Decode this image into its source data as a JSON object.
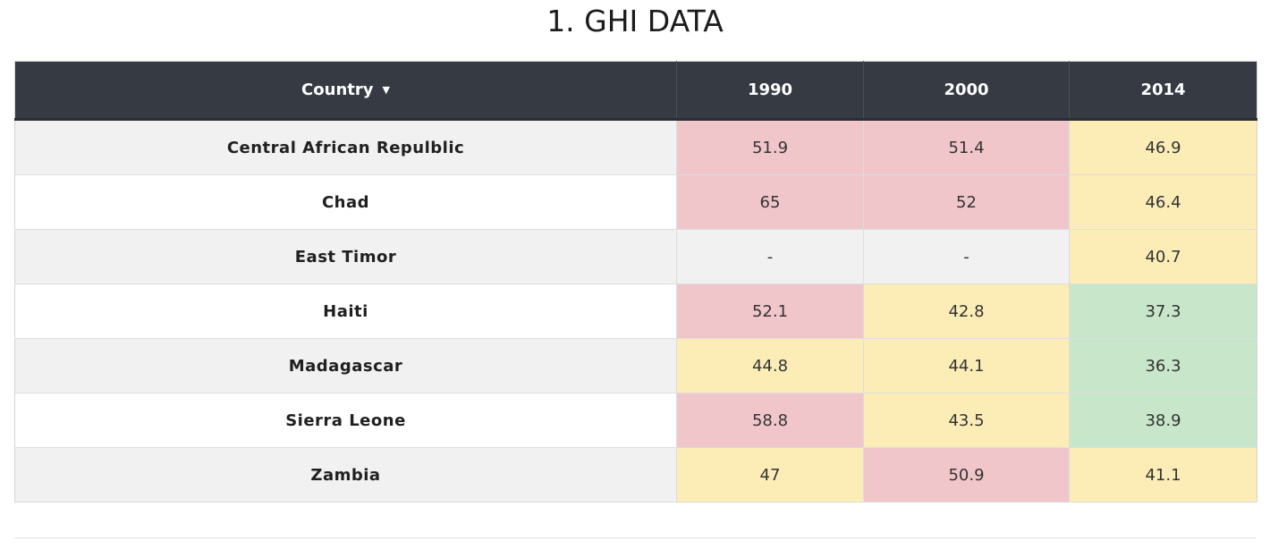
{
  "title": "1. GHI DATA",
  "table": {
    "headers": [
      "Country",
      "1990",
      "2000",
      "2014"
    ],
    "sort_icon": "caret-down-icon",
    "rows": [
      {
        "country": "Central African Repulblic",
        "values": [
          "51.9",
          "51.4",
          "46.9"
        ],
        "levels": [
          "high",
          "high",
          "mid"
        ]
      },
      {
        "country": "Chad",
        "values": [
          "65",
          "52",
          "46.4"
        ],
        "levels": [
          "high",
          "high",
          "mid"
        ]
      },
      {
        "country": "East Timor",
        "values": [
          "-",
          "-",
          "40.7"
        ],
        "levels": [
          "none",
          "none",
          "mid"
        ]
      },
      {
        "country": "Haiti",
        "values": [
          "52.1",
          "42.8",
          "37.3"
        ],
        "levels": [
          "high",
          "mid",
          "low"
        ]
      },
      {
        "country": "Madagascar",
        "values": [
          "44.8",
          "44.1",
          "36.3"
        ],
        "levels": [
          "mid",
          "mid",
          "low"
        ]
      },
      {
        "country": "Sierra Leone",
        "values": [
          "58.8",
          "43.5",
          "38.9"
        ],
        "levels": [
          "high",
          "mid",
          "low"
        ]
      },
      {
        "country": "Zambia",
        "values": [
          "47",
          "50.9",
          "41.1"
        ],
        "levels": [
          "mid",
          "high",
          "mid"
        ]
      }
    ]
  },
  "colors": {
    "header_bg": "#363a42",
    "high": "#f0c6cb",
    "mid": "#fcedb7",
    "low": "#c8e6c9",
    "none": "#f1f1f1"
  }
}
